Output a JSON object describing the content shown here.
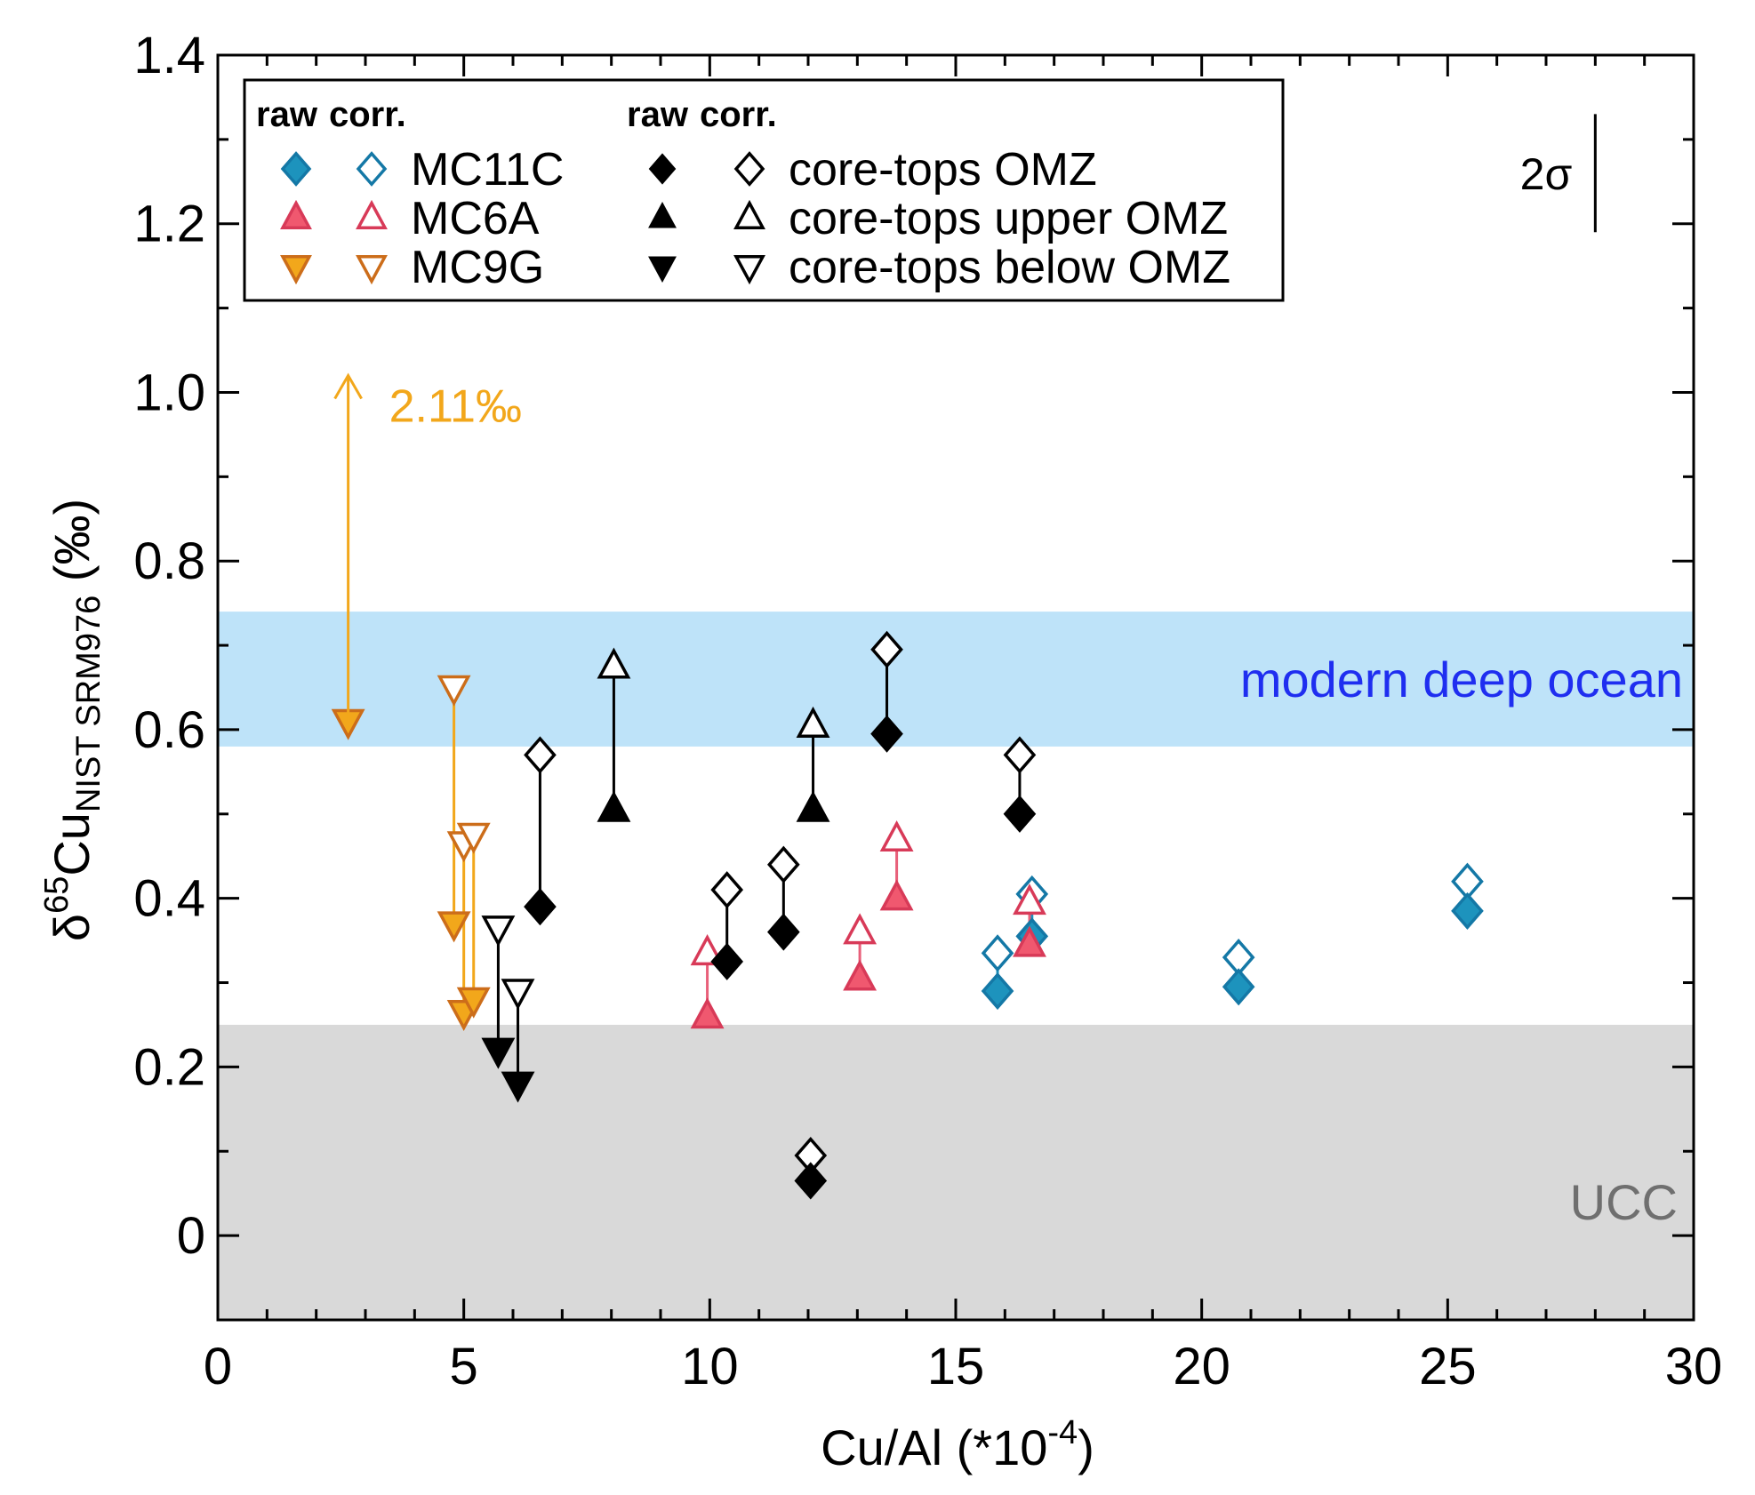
{
  "chart_data": {
    "type": "scatter",
    "title": "",
    "xlabel": "Cu/Al (*10",
    "xlabel_exp": "-4",
    "xlabel_close": ")",
    "ylabel_delta": "δ",
    "ylabel_mass": "65",
    "ylabel_element": "Cu",
    "ylabel_sub": "NIST SRM976",
    "ylabel_unit": " (‰)",
    "xlim": [
      0,
      30
    ],
    "ylim": [
      -0.1,
      1.4
    ],
    "xticks": [
      0,
      5,
      10,
      15,
      20,
      25,
      30
    ],
    "xtick_labels": [
      "0",
      "5",
      "10",
      "15",
      "20",
      "25",
      "30"
    ],
    "yticks": [
      0,
      0.2,
      0.4,
      0.6,
      0.8,
      1.0,
      1.2,
      1.4
    ],
    "ytick_labels": [
      "0",
      "0.2",
      "0.4",
      "0.6",
      "0.8",
      "1.0",
      "1.2",
      "1.4"
    ],
    "grid": false,
    "bands": [
      {
        "name": "modern-deep-ocean",
        "label": "modern deep ocean",
        "y0": 0.58,
        "y1": 0.74,
        "fill": "#bee3f9",
        "text_color": "#1f2ef0"
      },
      {
        "name": "ucc",
        "label": "UCC",
        "y0": -0.1,
        "y1": 0.25,
        "fill": "#d9d9d9",
        "text_color": "#6f6f6f"
      }
    ],
    "annotations": [
      {
        "name": "offscale-arrow",
        "text": "2.11‰",
        "x": 2.65,
        "y_from": 0.61,
        "y_to": 1.02,
        "color": "#f2a71b"
      },
      {
        "name": "two-sigma",
        "text": "2σ",
        "x": 28.0,
        "y_from": 1.19,
        "y_to": 1.33
      }
    ],
    "legend": {
      "position": "top-left",
      "header_raw": "raw",
      "header_corr": "corr.",
      "entries": [
        {
          "label": "MC11C",
          "series": "MC11C"
        },
        {
          "label": "MC6A",
          "series": "MC6A"
        },
        {
          "label": "MC9G",
          "series": "MC9G"
        },
        {
          "label": "core-tops OMZ",
          "series": "core-tops OMZ"
        },
        {
          "label": "core-tops upper OMZ",
          "series": "core-tops upper OMZ"
        },
        {
          "label": "core-tops below OMZ",
          "series": "core-tops below OMZ"
        }
      ]
    },
    "series": [
      {
        "name": "MC11C",
        "marker": "diamond",
        "fill": "#1d93bd",
        "stroke": "#1478a6",
        "line": "#1d93bd",
        "points": [
          {
            "x": 15.85,
            "raw": 0.29,
            "corr": 0.335
          },
          {
            "x": 16.55,
            "raw": 0.355,
            "corr": 0.405
          },
          {
            "x": 20.75,
            "raw": 0.295,
            "corr": 0.33
          },
          {
            "x": 25.4,
            "raw": 0.385,
            "corr": 0.42
          }
        ]
      },
      {
        "name": "MC6A",
        "marker": "triangle-up",
        "fill": "#f0586f",
        "stroke": "#d83a58",
        "line": "#e8607a",
        "points": [
          {
            "x": 9.95,
            "raw": 0.26,
            "corr": 0.335
          },
          {
            "x": 13.05,
            "raw": 0.305,
            "corr": 0.36
          },
          {
            "x": 13.8,
            "raw": 0.4,
            "corr": 0.47
          },
          {
            "x": 16.5,
            "raw": 0.345,
            "corr": 0.395
          }
        ]
      },
      {
        "name": "MC9G",
        "marker": "triangle-down",
        "fill": "#f2a71b",
        "stroke": "#cc6d1a",
        "line": "#f2a71b",
        "points": [
          {
            "x": 2.65,
            "raw": 0.61,
            "corr": null
          },
          {
            "x": 4.8,
            "raw": 0.37,
            "corr": 0.65
          },
          {
            "x": 5.0,
            "raw": 0.265,
            "corr": 0.465
          },
          {
            "x": 5.2,
            "raw": 0.28,
            "corr": 0.475
          }
        ]
      },
      {
        "name": "core-tops OMZ",
        "marker": "diamond",
        "fill": "#000000",
        "stroke": "#000000",
        "line": "#000000",
        "points": [
          {
            "x": 6.55,
            "raw": 0.39,
            "corr": 0.57
          },
          {
            "x": 10.35,
            "raw": 0.325,
            "corr": 0.41
          },
          {
            "x": 11.5,
            "raw": 0.36,
            "corr": 0.44
          },
          {
            "x": 12.05,
            "raw": 0.065,
            "corr": 0.095
          },
          {
            "x": 13.6,
            "raw": 0.595,
            "corr": 0.695
          },
          {
            "x": 16.3,
            "raw": 0.5,
            "corr": 0.57
          }
        ]
      },
      {
        "name": "core-tops upper OMZ",
        "marker": "triangle-up",
        "fill": "#000000",
        "stroke": "#000000",
        "line": "#000000",
        "points": [
          {
            "x": 8.05,
            "raw": 0.505,
            "corr": 0.675
          },
          {
            "x": 12.1,
            "raw": 0.505,
            "corr": 0.605
          }
        ]
      },
      {
        "name": "core-tops below OMZ",
        "marker": "triangle-down",
        "fill": "#000000",
        "stroke": "#000000",
        "line": "#000000",
        "points": [
          {
            "x": 5.7,
            "raw": 0.22,
            "corr": 0.365
          },
          {
            "x": 6.1,
            "raw": 0.18,
            "corr": 0.29
          }
        ]
      }
    ]
  }
}
